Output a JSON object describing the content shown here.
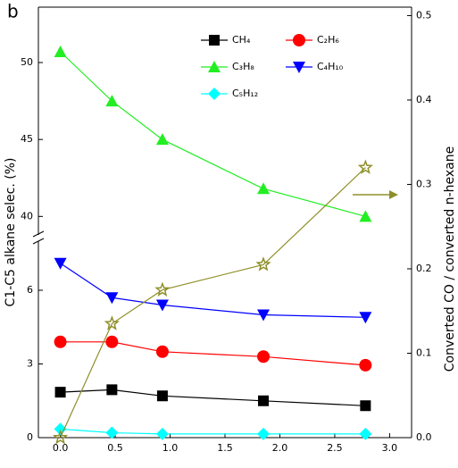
{
  "chart_data": {
    "type": "line",
    "panel_label": "b",
    "ylabel": "C1-C5 alkane selec. (%)",
    "y2label": "Converted CO / converted n-hexane",
    "xlim": [
      -0.2,
      3.2
    ],
    "xticks": [
      {
        "value": 0,
        "label": "0.0"
      },
      0.5,
      {
        "value": 1,
        "label": "1.0"
      },
      1.5,
      {
        "value": 2,
        "label": "2.0"
      },
      2.5,
      {
        "value": 3,
        "label": "3.0"
      }
    ],
    "ylim": [
      0,
      8
    ],
    "yticks": [
      0,
      3,
      6
    ],
    "ylim_upper": [
      38.8,
      53.6
    ],
    "yticks_upper": [
      40,
      45,
      50
    ],
    "y2lim": [
      0,
      0.51
    ],
    "y2ticks": [
      {
        "value": 0,
        "label": "0.0"
      },
      0.1,
      0.2,
      0.3,
      0.4,
      0.5
    ],
    "x": [
      0,
      0.47,
      0.93,
      1.85,
      2.78
    ],
    "series": [
      {
        "name": "CH₄",
        "color": "#000000",
        "marker": "square",
        "values": [
          1.85,
          1.95,
          1.7,
          1.5,
          1.3
        ]
      },
      {
        "name": "C₂H₆",
        "color": "#ff0000",
        "marker": "circle",
        "values": [
          3.9,
          3.9,
          3.5,
          3.3,
          2.95
        ]
      },
      {
        "name": "C₃H₈",
        "color": "#22ee22",
        "marker": "triangle-up",
        "axis": "y_upper",
        "values": [
          50.7,
          47.5,
          45.0,
          41.8,
          40.0
        ]
      },
      {
        "name": "C₄H₁₀",
        "color": "#0000ff",
        "marker": "triangle-down",
        "values": [
          7.1,
          5.7,
          5.4,
          5.0,
          4.9
        ]
      },
      {
        "name": "C₅H₁₂",
        "color": "#00ffff",
        "marker": "diamond",
        "values": [
          0.35,
          0.2,
          0.15,
          0.15,
          0.15
        ]
      },
      {
        "color": "#8f8f2a",
        "marker": "star",
        "axis": "y2",
        "values": [
          0.0,
          0.135,
          0.175,
          0.205,
          0.32
        ]
      }
    ]
  }
}
